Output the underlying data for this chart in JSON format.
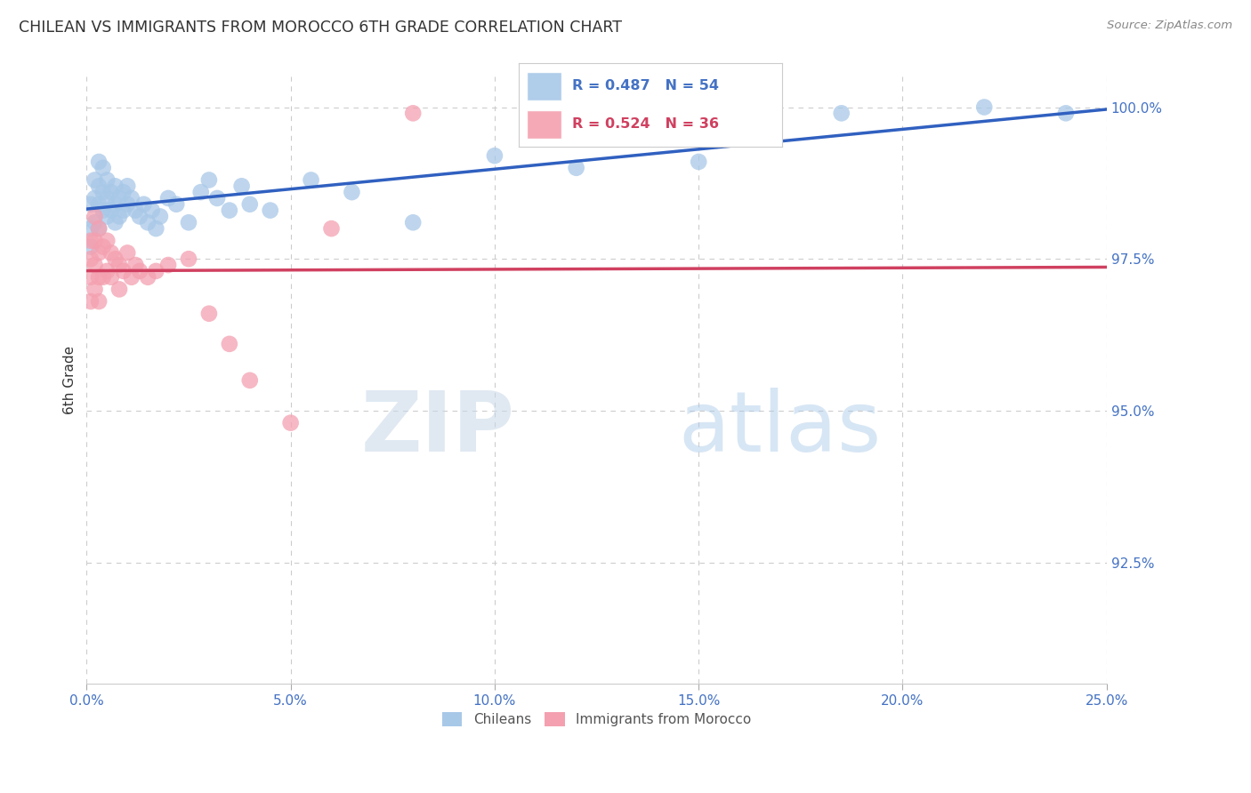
{
  "title": "CHILEAN VS IMMIGRANTS FROM MOROCCO 6TH GRADE CORRELATION CHART",
  "source": "Source: ZipAtlas.com",
  "ylabel": "6th Grade",
  "xlim": [
    0.0,
    0.25
  ],
  "ylim": [
    0.905,
    1.005
  ],
  "xticks": [
    0.0,
    0.05,
    0.1,
    0.15,
    0.2,
    0.25
  ],
  "xtick_labels": [
    "0.0%",
    "5.0%",
    "10.0%",
    "15.0%",
    "20.0%",
    "25.0%"
  ],
  "yticks_right": [
    0.925,
    0.95,
    0.975,
    1.0
  ],
  "ytick_labels_right": [
    "92.5%",
    "95.0%",
    "97.5%",
    "100.0%"
  ],
  "blue_R": 0.487,
  "blue_N": 54,
  "pink_R": 0.524,
  "pink_N": 36,
  "blue_color": "#a8c8e8",
  "pink_color": "#f4a0b0",
  "blue_line_color": "#3060c0",
  "pink_line_color": "#d04060",
  "legend_label_blue": "Chileans",
  "legend_label_pink": "Immigrants from Morocco",
  "blue_x": [
    0.001,
    0.001,
    0.001,
    0.002,
    0.002,
    0.002,
    0.003,
    0.003,
    0.003,
    0.003,
    0.004,
    0.004,
    0.004,
    0.005,
    0.005,
    0.005,
    0.006,
    0.006,
    0.007,
    0.007,
    0.007,
    0.008,
    0.008,
    0.009,
    0.009,
    0.01,
    0.01,
    0.011,
    0.012,
    0.013,
    0.014,
    0.015,
    0.016,
    0.017,
    0.018,
    0.02,
    0.022,
    0.025,
    0.028,
    0.03,
    0.032,
    0.035,
    0.038,
    0.04,
    0.045,
    0.055,
    0.065,
    0.08,
    0.1,
    0.12,
    0.15,
    0.185,
    0.22,
    0.24
  ],
  "blue_y": [
    0.984,
    0.98,
    0.977,
    0.988,
    0.985,
    0.981,
    0.991,
    0.987,
    0.984,
    0.98,
    0.99,
    0.986,
    0.983,
    0.988,
    0.985,
    0.982,
    0.986,
    0.983,
    0.987,
    0.984,
    0.981,
    0.985,
    0.982,
    0.986,
    0.983,
    0.987,
    0.984,
    0.985,
    0.983,
    0.982,
    0.984,
    0.981,
    0.983,
    0.98,
    0.982,
    0.985,
    0.984,
    0.981,
    0.986,
    0.988,
    0.985,
    0.983,
    0.987,
    0.984,
    0.983,
    0.988,
    0.986,
    0.981,
    0.992,
    0.99,
    0.991,
    0.999,
    1.0,
    0.999
  ],
  "pink_x": [
    0.001,
    0.001,
    0.001,
    0.001,
    0.002,
    0.002,
    0.002,
    0.002,
    0.003,
    0.003,
    0.003,
    0.003,
    0.004,
    0.004,
    0.005,
    0.005,
    0.006,
    0.006,
    0.007,
    0.008,
    0.008,
    0.009,
    0.01,
    0.011,
    0.012,
    0.013,
    0.015,
    0.017,
    0.02,
    0.025,
    0.03,
    0.035,
    0.04,
    0.05,
    0.06,
    0.08
  ],
  "pink_y": [
    0.978,
    0.975,
    0.972,
    0.968,
    0.982,
    0.978,
    0.974,
    0.97,
    0.98,
    0.976,
    0.972,
    0.968,
    0.977,
    0.972,
    0.978,
    0.973,
    0.976,
    0.972,
    0.975,
    0.974,
    0.97,
    0.973,
    0.976,
    0.972,
    0.974,
    0.973,
    0.972,
    0.973,
    0.974,
    0.975,
    0.966,
    0.961,
    0.955,
    0.948,
    0.98,
    0.999
  ],
  "watermark_zip": "ZIP",
  "watermark_atlas": "atlas",
  "background_color": "#ffffff",
  "grid_color": "#cccccc",
  "title_color": "#333333",
  "axis_color": "#4472c4",
  "legend_border_color": "#cccccc"
}
